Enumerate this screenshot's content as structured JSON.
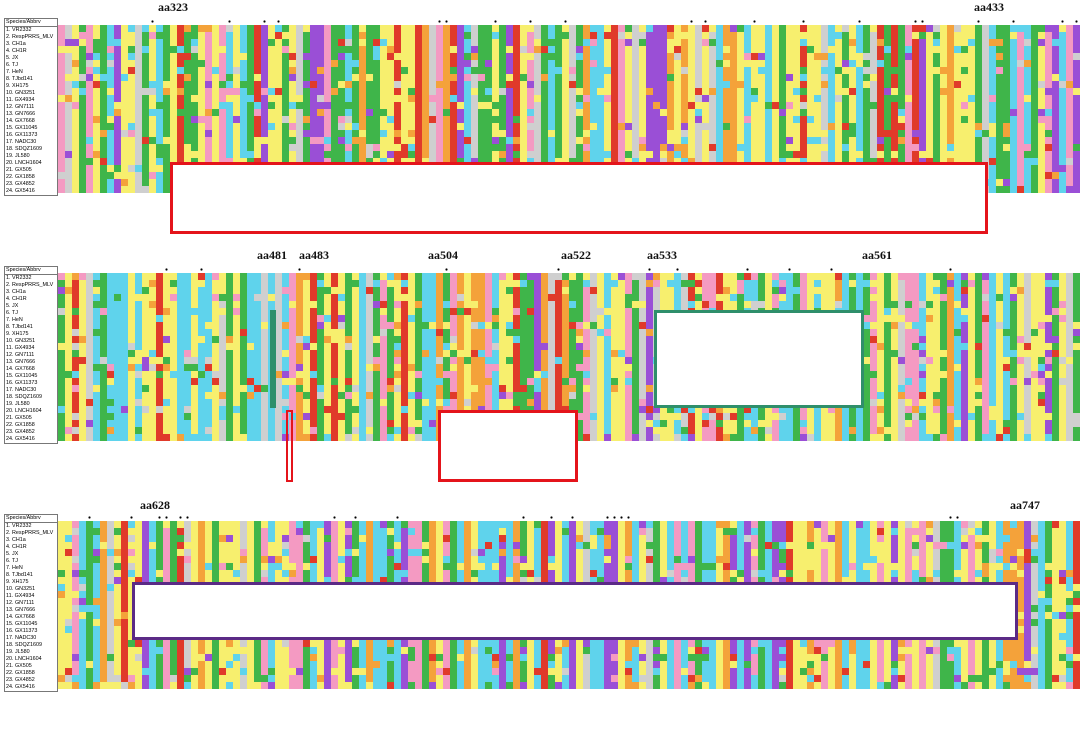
{
  "header_label": "Species/Abbrv",
  "sequences": [
    "1. VR2332",
    "2. RespPRRS_MLV",
    "3. CH1a",
    "4. CH1R",
    "5. JX",
    "6. TJ",
    "7. HeN",
    "8. TJbd141",
    "9. XH175",
    "10. GN3251",
    "11. GX4934",
    "12. GN7111",
    "13. GN7666",
    "14. GX7668",
    "15. GX11045",
    "16. GX11373",
    "17. NADC30",
    "18. SDQZ1609",
    "19. JL580",
    "20. LNCH1604",
    "21. GX505",
    "22. GX1858",
    "23. GX4852",
    "24. GX5416"
  ],
  "panels": [
    {
      "labels": [
        "aa323",
        "aa433"
      ]
    },
    {
      "labels": [
        "aa481",
        "aa483",
        "aa504",
        "aa522",
        "aa533",
        "aa561"
      ]
    },
    {
      "labels": [
        "aa628",
        "aa747"
      ]
    }
  ],
  "colors": {
    "yellow": "#f7ef6e",
    "green": "#3fb54a",
    "cyan": "#5fd3ec",
    "purple": "#9a4fd6",
    "red": "#e03a2a",
    "orange": "#f4a23a",
    "pink": "#f49ac2",
    "gray": "#cfcfcf",
    "box_red": "#e4141b",
    "box_green": "#2f8f6b",
    "box_purple": "#5b2a86"
  }
}
